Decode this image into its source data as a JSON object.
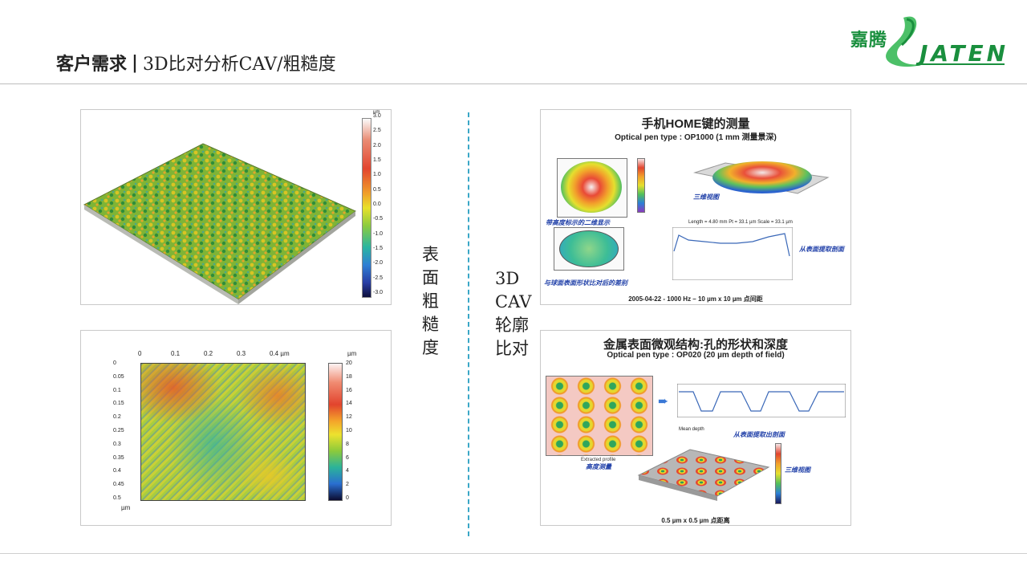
{
  "header": {
    "title_main": "客户需求",
    "separator": "|",
    "title_sub": "3D比对分析CAV/粗糙度"
  },
  "logo": {
    "cn": "嘉腾",
    "en": "JATEN",
    "colors": {
      "green": "#1a8f3e",
      "accent": "#4cc068"
    }
  },
  "labels": {
    "roughness_chars": [
      "表",
      "面",
      "粗",
      "糙",
      "度"
    ],
    "cav_lines": [
      "3D",
      "CAV",
      "轮廓",
      "比对"
    ]
  },
  "left_top": {
    "unit": "µm",
    "scale_ticks": [
      "3.0",
      "2.5",
      "2.0",
      "1.5",
      "1.0",
      "0.5",
      "0.0",
      "-0.5",
      "-1.0",
      "-1.5",
      "-2.0",
      "-2.5",
      "-3.0"
    ]
  },
  "left_bottom": {
    "unit": "µm",
    "x_ticks": [
      "0",
      "0.1",
      "0.2",
      "0.3",
      "0.4 µm"
    ],
    "y_ticks": [
      "0",
      "0.05",
      "0.1",
      "0.15",
      "0.2",
      "0.25",
      "0.3",
      "0.35",
      "0.4",
      "0.45",
      "0.5"
    ],
    "y_unit": "µm",
    "scale_ticks": [
      "20",
      "18",
      "16",
      "14",
      "12",
      "10",
      "8",
      "6",
      "4",
      "2",
      "0"
    ]
  },
  "right_top": {
    "title": "手机HOME键的测量",
    "subtitle": "Optical pen type : OP1000 (1 mm 测量景深)",
    "cap_contour": "带高度标示的二维显示",
    "cap_diff": "与球面表面形状比对后的差别",
    "cap_3d": "三维视图",
    "cap_profile": "从表面提取剖面",
    "profile_header": "Length = 4.80 mm  Pt = 33.1 µm  Scale = 33.1 µm",
    "footer": "2005-04-22 - 1000 Hz – 10 µm x 10 µm 点间距"
  },
  "right_bottom": {
    "title": "金属表面微观结构:孔的形状和深度",
    "subtitle": "Optical pen type : OP020 (20 µm depth of field)",
    "cap_height": "高度测量",
    "cap_extracted": "Extracted profile",
    "cap_profile": "从表面提取出剖面",
    "cap_3d": "三维视图",
    "mean_depth": "Mean depth",
    "footer": "0.5 µm x 0.5 µm 点距离"
  }
}
